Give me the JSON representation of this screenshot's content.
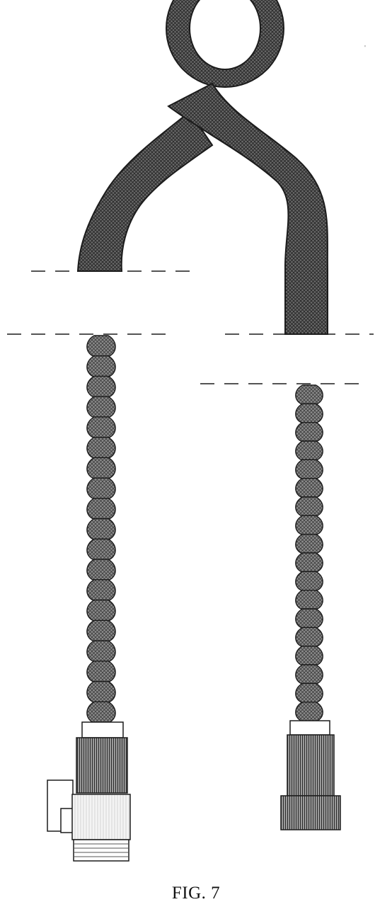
{
  "figure": {
    "caption": "FIG. 7"
  },
  "colors": {
    "ink": "#1c1c1c",
    "hose_fill": "#5e5e5e",
    "mesh_light": "#d6d6d6",
    "knurl_fill": "#7a7a7a",
    "paper": "#ffffff"
  },
  "parts": {
    "left_hose_segments": 19,
    "right_hose_segments": 18
  }
}
